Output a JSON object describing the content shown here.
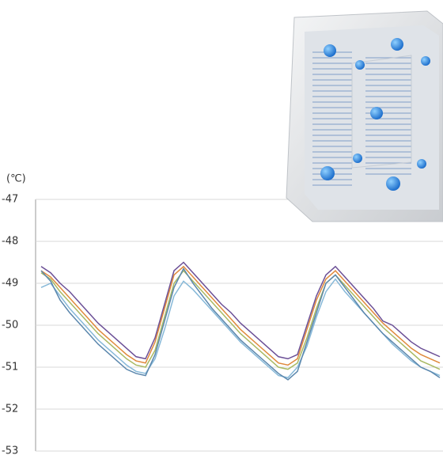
{
  "chart_data": {
    "type": "line",
    "y_label": "(℃)",
    "categories": [
      null,
      null,
      null,
      null,
      null,
      null,
      null,
      null,
      null,
      null,
      null,
      null,
      null,
      null,
      null,
      null,
      null,
      null,
      null,
      null,
      null,
      null,
      null,
      null,
      null,
      null,
      null,
      null,
      null,
      null,
      null,
      null,
      null,
      null,
      null,
      null,
      null,
      null,
      null,
      null,
      null,
      null,
      null
    ],
    "ylim": [
      -53,
      -47
    ],
    "yticks": [
      -53,
      -52,
      -51,
      -50,
      -49,
      -48,
      -47
    ],
    "grid": true,
    "series": [
      {
        "color": "#6b4f96",
        "values": [
          -48.6,
          -48.75,
          -49.0,
          -49.2,
          -49.45,
          -49.7,
          -49.95,
          -50.15,
          -50.35,
          -50.55,
          -50.75,
          -50.8,
          -50.3,
          -49.5,
          -48.7,
          -48.5,
          -48.75,
          -49.0,
          -49.25,
          -49.5,
          -49.7,
          -49.95,
          -50.15,
          -50.35,
          -50.55,
          -50.75,
          -50.8,
          -50.7,
          -50.0,
          -49.3,
          -48.8,
          -48.6,
          -48.85,
          -49.1,
          -49.35,
          -49.6,
          -49.9,
          -50.0,
          -50.2,
          -50.4,
          -50.55,
          -50.65,
          -50.75
        ]
      },
      {
        "color": "#e0893c",
        "values": [
          -48.7,
          -48.85,
          -49.1,
          -49.35,
          -49.6,
          -49.85,
          -50.1,
          -50.3,
          -50.5,
          -50.7,
          -50.85,
          -50.9,
          -50.4,
          -49.6,
          -48.8,
          -48.6,
          -48.85,
          -49.1,
          -49.35,
          -49.6,
          -49.85,
          -50.1,
          -50.3,
          -50.5,
          -50.7,
          -50.9,
          -50.95,
          -50.8,
          -50.1,
          -49.4,
          -48.9,
          -48.7,
          -48.95,
          -49.2,
          -49.45,
          -49.7,
          -49.95,
          -50.15,
          -50.35,
          -50.55,
          -50.7,
          -50.8,
          -50.9
        ]
      },
      {
        "color": "#a9b963",
        "values": [
          -48.75,
          -48.9,
          -49.2,
          -49.45,
          -49.7,
          -49.95,
          -50.2,
          -50.4,
          -50.6,
          -50.8,
          -50.95,
          -51.0,
          -50.6,
          -49.8,
          -49.0,
          -48.7,
          -48.95,
          -49.2,
          -49.45,
          -49.7,
          -49.95,
          -50.2,
          -50.4,
          -50.6,
          -50.8,
          -51.0,
          -51.05,
          -50.9,
          -50.3,
          -49.6,
          -49.0,
          -48.8,
          -49.05,
          -49.3,
          -49.55,
          -49.8,
          -50.05,
          -50.25,
          -50.45,
          -50.65,
          -50.85,
          -50.95,
          -51.05
        ]
      },
      {
        "color": "#86b8d8",
        "values": [
          -49.1,
          -49.0,
          -49.3,
          -49.6,
          -49.85,
          -50.1,
          -50.35,
          -50.55,
          -50.75,
          -50.95,
          -51.1,
          -51.15,
          -50.8,
          -50.1,
          -49.3,
          -48.95,
          -49.15,
          -49.4,
          -49.65,
          -49.9,
          -50.15,
          -50.4,
          -50.6,
          -50.8,
          -51.0,
          -51.2,
          -51.25,
          -51.0,
          -50.5,
          -49.8,
          -49.2,
          -48.9,
          -49.2,
          -49.45,
          -49.7,
          -49.95,
          -50.2,
          -50.45,
          -50.65,
          -50.85,
          -51.0,
          -51.1,
          -51.2
        ]
      },
      {
        "color": "#5b87ad",
        "values": [
          -48.7,
          -48.95,
          -49.4,
          -49.7,
          -49.95,
          -50.2,
          -50.45,
          -50.65,
          -50.85,
          -51.05,
          -51.15,
          -51.2,
          -50.7,
          -49.9,
          -49.1,
          -48.65,
          -49.0,
          -49.3,
          -49.6,
          -49.85,
          -50.1,
          -50.35,
          -50.55,
          -50.75,
          -50.95,
          -51.15,
          -51.3,
          -51.1,
          -50.4,
          -49.7,
          -49.0,
          -48.8,
          -49.1,
          -49.4,
          -49.7,
          -49.95,
          -50.2,
          -50.4,
          -50.6,
          -50.8,
          -51.0,
          -51.1,
          -51.25
        ]
      }
    ]
  }
}
